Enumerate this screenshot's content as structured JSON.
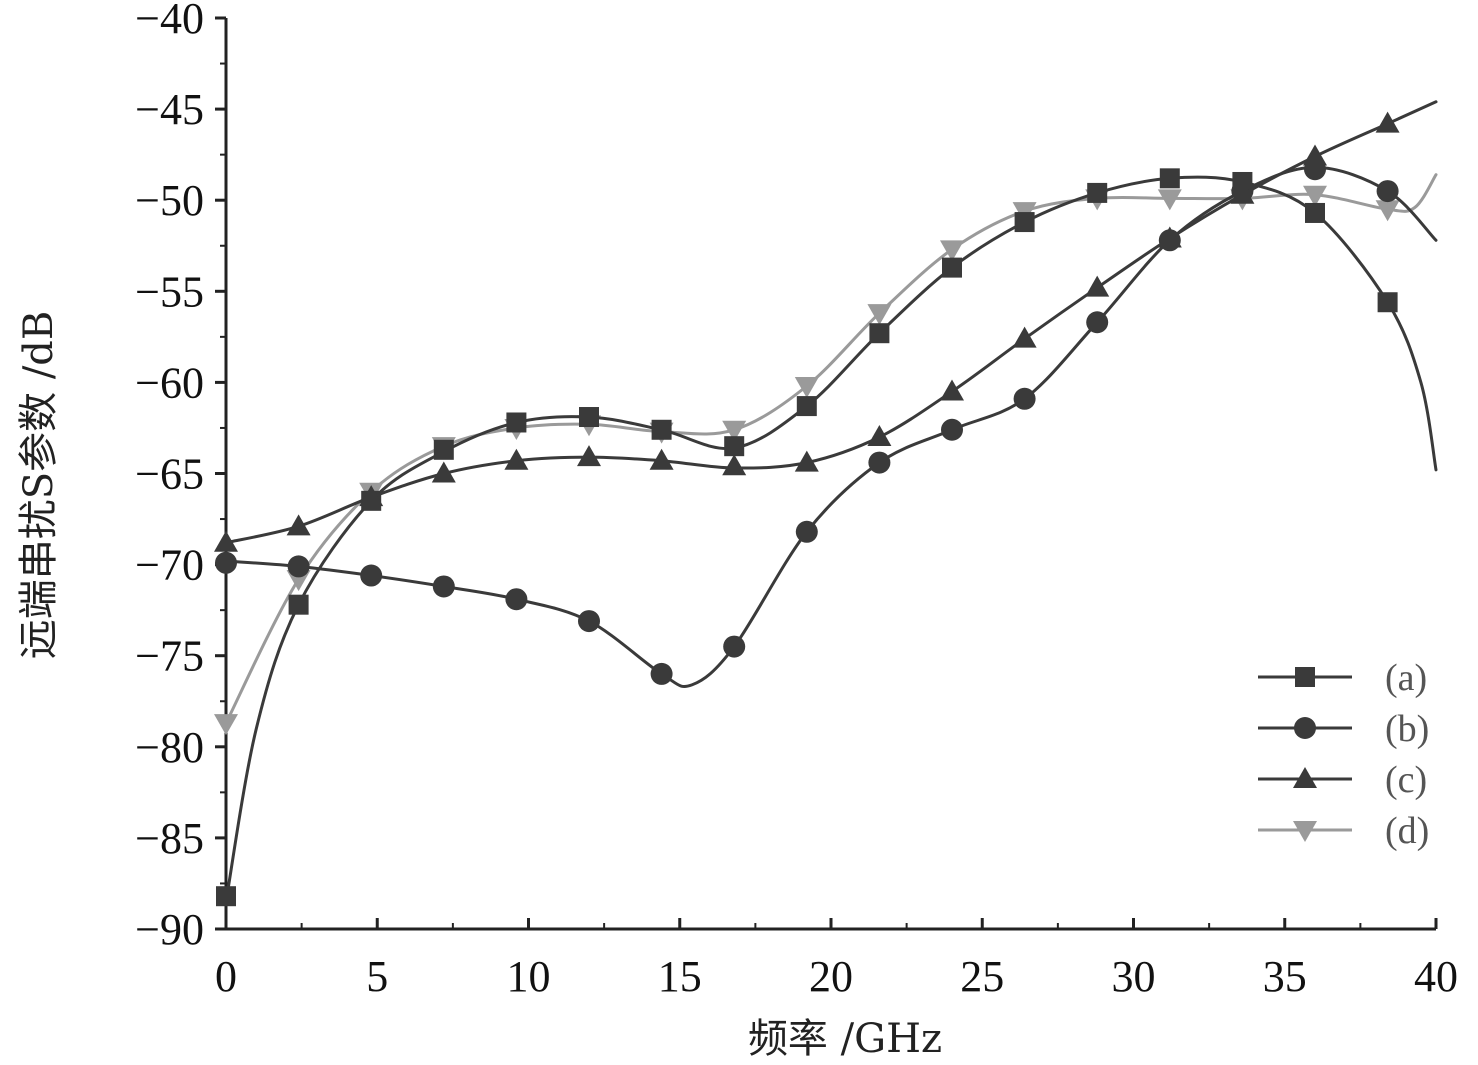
{
  "chart_data": {
    "type": "line",
    "xlabel": "频率 /GHz",
    "ylabel": "远端串扰S参数 /dB",
    "xlim": [
      0,
      40
    ],
    "ylim": [
      -90,
      -40
    ],
    "x_ticks": [
      "0",
      "5",
      "10",
      "15",
      "20",
      "25",
      "30",
      "35",
      "40"
    ],
    "y_ticks": [
      "−40",
      "−45",
      "−50",
      "−55",
      "−60",
      "−65",
      "−70",
      "−75",
      "−80",
      "−85",
      "−90"
    ],
    "x_tick_values": [
      0,
      5,
      10,
      15,
      20,
      25,
      30,
      35,
      40
    ],
    "y_tick_values": [
      -40,
      -45,
      -50,
      -55,
      -60,
      -65,
      -70,
      -75,
      -80,
      -85,
      -90
    ],
    "grid": false,
    "legend_position": "bottom-right",
    "series": [
      {
        "name": "(a)",
        "marker": "square",
        "color": "#3a3a3a",
        "curve": [
          [
            0,
            -88.5
          ],
          [
            1,
            -79
          ],
          [
            2.4,
            -72.2
          ],
          [
            4.8,
            -66.5
          ],
          [
            7.2,
            -63.8
          ],
          [
            9.6,
            -62.2
          ],
          [
            12,
            -61.9
          ],
          [
            14.4,
            -62.6
          ],
          [
            16.8,
            -63.6
          ],
          [
            19.2,
            -61.3
          ],
          [
            21.6,
            -57.3
          ],
          [
            24,
            -53.7
          ],
          [
            26.4,
            -51.2
          ],
          [
            28.8,
            -49.6
          ],
          [
            31.2,
            -48.8
          ],
          [
            33.6,
            -49
          ],
          [
            36,
            -50.7
          ],
          [
            38.4,
            -55.6
          ],
          [
            39.5,
            -60
          ],
          [
            40,
            -64.8
          ]
        ],
        "markers": [
          [
            0,
            -88.2
          ],
          [
            2.4,
            -72.2
          ],
          [
            4.8,
            -66.5
          ],
          [
            7.2,
            -63.7
          ],
          [
            9.6,
            -62.2
          ],
          [
            12,
            -61.9
          ],
          [
            14.4,
            -62.6
          ],
          [
            16.8,
            -63.5
          ],
          [
            19.2,
            -61.3
          ],
          [
            21.6,
            -57.3
          ],
          [
            24,
            -53.7
          ],
          [
            26.4,
            -51.2
          ],
          [
            28.8,
            -49.6
          ],
          [
            31.2,
            -48.8
          ],
          [
            33.6,
            -49
          ],
          [
            36,
            -50.7
          ],
          [
            38.4,
            -55.6
          ]
        ]
      },
      {
        "name": "(b)",
        "marker": "circle",
        "color": "#3a3a3a",
        "curve": [
          [
            0,
            -69.8
          ],
          [
            2.4,
            -70.1
          ],
          [
            4.8,
            -70.6
          ],
          [
            7.2,
            -71.2
          ],
          [
            9.6,
            -71.9
          ],
          [
            12,
            -73.1
          ],
          [
            14.4,
            -76
          ],
          [
            15.4,
            -76.6
          ],
          [
            16.8,
            -74.5
          ],
          [
            19.2,
            -68.2
          ],
          [
            21.6,
            -64.4
          ],
          [
            24,
            -62.6
          ],
          [
            26.4,
            -60.9
          ],
          [
            28.8,
            -56.7
          ],
          [
            31.2,
            -52.2
          ],
          [
            33.6,
            -49.5
          ],
          [
            36,
            -48.2
          ],
          [
            38.4,
            -49.5
          ],
          [
            40,
            -52.2
          ]
        ],
        "markers": [
          [
            0,
            -69.9
          ],
          [
            2.4,
            -70.1
          ],
          [
            4.8,
            -70.6
          ],
          [
            7.2,
            -71.2
          ],
          [
            9.6,
            -71.9
          ],
          [
            12,
            -73.1
          ],
          [
            14.4,
            -76
          ],
          [
            16.8,
            -74.5
          ],
          [
            19.2,
            -68.2
          ],
          [
            21.6,
            -64.4
          ],
          [
            24,
            -62.6
          ],
          [
            26.4,
            -60.9
          ],
          [
            28.8,
            -56.7
          ],
          [
            31.2,
            -52.2
          ],
          [
            33.6,
            -49.5
          ],
          [
            36,
            -48.3
          ],
          [
            38.4,
            -49.5
          ]
        ]
      },
      {
        "name": "(c)",
        "marker": "triangle-up",
        "color": "#3a3a3a",
        "curve": [
          [
            0,
            -68.8
          ],
          [
            2.4,
            -67.9
          ],
          [
            4.8,
            -66.3
          ],
          [
            7.2,
            -65
          ],
          [
            9.6,
            -64.3
          ],
          [
            12,
            -64.1
          ],
          [
            14.4,
            -64.3
          ],
          [
            16.8,
            -64.7
          ],
          [
            19.2,
            -64.4
          ],
          [
            21.6,
            -63
          ],
          [
            24,
            -60.5
          ],
          [
            26.4,
            -57.6
          ],
          [
            28.8,
            -54.8
          ],
          [
            31.2,
            -52.1
          ],
          [
            33.6,
            -49.7
          ],
          [
            36,
            -47.6
          ],
          [
            38.4,
            -45.8
          ],
          [
            40,
            -44.6
          ]
        ],
        "markers": [
          [
            0,
            -68.8
          ],
          [
            2.4,
            -67.9
          ],
          [
            4.8,
            -66.3
          ],
          [
            7.2,
            -65
          ],
          [
            9.6,
            -64.3
          ],
          [
            12,
            -64.1
          ],
          [
            14.4,
            -64.3
          ],
          [
            16.8,
            -64.6
          ],
          [
            19.2,
            -64.4
          ],
          [
            21.6,
            -63
          ],
          [
            24,
            -60.5
          ],
          [
            26.4,
            -57.6
          ],
          [
            28.8,
            -54.8
          ],
          [
            31.2,
            -52.1
          ],
          [
            33.6,
            -49.7
          ],
          [
            36,
            -47.6
          ],
          [
            38.4,
            -45.8
          ]
        ]
      },
      {
        "name": "(d)",
        "marker": "triangle-down",
        "color": "#9a9a9a",
        "curve": [
          [
            0,
            -78.7
          ],
          [
            2.4,
            -70.8
          ],
          [
            4.8,
            -66
          ],
          [
            7.2,
            -63.5
          ],
          [
            9.6,
            -62.5
          ],
          [
            12,
            -62.3
          ],
          [
            14.4,
            -62.7
          ],
          [
            16.8,
            -62.6
          ],
          [
            19.2,
            -60.2
          ],
          [
            21.6,
            -56.2
          ],
          [
            24,
            -52.7
          ],
          [
            26.4,
            -50.6
          ],
          [
            28.8,
            -49.9
          ],
          [
            31.2,
            -49.9
          ],
          [
            33.6,
            -49.9
          ],
          [
            36,
            -49.7
          ],
          [
            38.4,
            -50.5
          ],
          [
            39.3,
            -50.4
          ],
          [
            40,
            -48.6
          ]
        ],
        "markers": [
          [
            0,
            -78.7
          ],
          [
            2.4,
            -70.8
          ],
          [
            4.8,
            -66
          ],
          [
            7.2,
            -63.5
          ],
          [
            9.6,
            -62.5
          ],
          [
            12,
            -62.3
          ],
          [
            14.4,
            -62.7
          ],
          [
            16.8,
            -62.6
          ],
          [
            19.2,
            -60.2
          ],
          [
            21.6,
            -56.2
          ],
          [
            24,
            -52.7
          ],
          [
            26.4,
            -50.6
          ],
          [
            28.8,
            -49.9
          ],
          [
            31.2,
            -49.9
          ],
          [
            33.6,
            -49.9
          ],
          [
            36,
            -49.7
          ],
          [
            38.4,
            -50.5
          ]
        ]
      }
    ]
  }
}
